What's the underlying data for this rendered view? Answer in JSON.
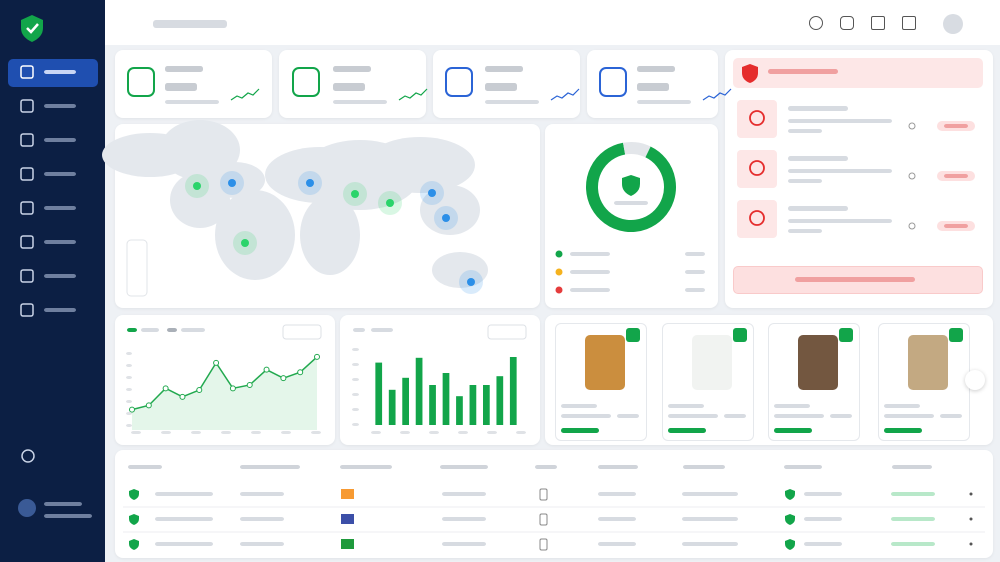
{
  "line_chart": {
    "type": "line",
    "color": "#22a94f",
    "values": [
      24,
      29,
      49,
      39,
      47,
      79,
      49,
      53,
      71,
      61,
      68,
      86
    ],
    "ylim": [
      0,
      100
    ]
  },
  "bar_chart": {
    "type": "bar",
    "color": "#12a54a",
    "values": [
      78,
      44,
      59,
      84,
      50,
      65,
      36,
      50,
      50,
      61,
      85
    ],
    "ylim": [
      0,
      100
    ]
  },
  "donut_chart": {
    "type": "pie",
    "colors": [
      "#12a54a",
      "#e3e6ea"
    ],
    "values": [
      90,
      10
    ]
  }
}
